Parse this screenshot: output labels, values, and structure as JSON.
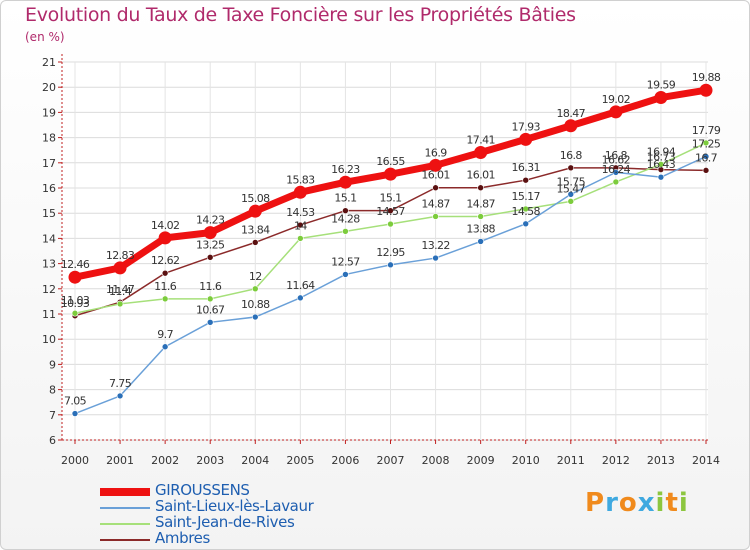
{
  "header": {
    "title": "Evolution du Taux de Taxe Foncière sur les Propriétés Bâties",
    "subtitle": "(en %)"
  },
  "logo": {
    "letters": [
      "P",
      "r",
      "o",
      "x",
      "i",
      "t",
      "i"
    ],
    "colors": [
      "#f08a1c",
      "#3fa9e0",
      "#f08a1c",
      "#3fa9e0",
      "#8cc63f",
      "#f08a1c",
      "#8cc63f"
    ]
  },
  "chart_data": {
    "type": "line",
    "title": "Evolution du Taux de Taxe Foncière sur les Propriétés Bâties",
    "ylabel": "(en %)",
    "xlabel": "",
    "ylim": [
      6,
      21
    ],
    "yticks": [
      "6",
      "7",
      "8",
      "9",
      "10",
      "11",
      "12",
      "13",
      "14",
      "15",
      "16",
      "17",
      "18",
      "19",
      "20",
      "21"
    ],
    "x": [
      "2000",
      "2001",
      "2002",
      "2003",
      "2004",
      "2005",
      "2006",
      "2007",
      "2008",
      "2009",
      "2010",
      "2011",
      "2012",
      "2013",
      "2014"
    ],
    "legend_position": "bottom-left",
    "series": [
      {
        "name": "Ambres",
        "color": "#8b2a2a",
        "marker": "#5a1010",
        "values": [
          10.93,
          11.47,
          12.62,
          13.25,
          13.84,
          14.53,
          15.1,
          15.1,
          16.01,
          16.01,
          16.31,
          16.8,
          16.8,
          16.73,
          16.7
        ],
        "labels": [
          "10.93",
          "11.47",
          "12.62",
          "13.25",
          "13.84",
          "14.53",
          "15.1",
          "15.1",
          "16.01",
          "16.01",
          "16.31",
          "16.8",
          "16.8",
          "16.73",
          "16.7"
        ]
      },
      {
        "name": "Saint-Jean-de-Rives",
        "color": "#a6e07a",
        "marker": "#7ccc3c",
        "values": [
          11.03,
          11.4,
          11.6,
          11.6,
          12.0,
          14.0,
          14.28,
          14.57,
          14.87,
          14.87,
          15.17,
          15.47,
          16.24,
          16.94,
          17.79
        ],
        "labels": [
          "11.03",
          "11.4",
          "11.6",
          "11.6",
          "12",
          "14",
          "14.28",
          "14.57",
          "14.87",
          "14.87",
          "15.17",
          "15.47",
          "16.24",
          "16.94",
          "17.79"
        ]
      },
      {
        "name": "Saint-Lieux-lès-Lavaur",
        "color": "#6aa0d8",
        "marker": "#2a6fb8",
        "values": [
          7.05,
          7.75,
          9.7,
          10.67,
          10.88,
          11.64,
          12.57,
          12.95,
          13.22,
          13.88,
          14.58,
          15.75,
          16.62,
          16.43,
          17.25
        ],
        "labels": [
          "7.05",
          "7.75",
          "9.7",
          "10.67",
          "10.88",
          "11.64",
          "12.57",
          "12.95",
          "13.22",
          "13.88",
          "14.58",
          "15.75",
          "16.62",
          "16.43",
          "17.25"
        ]
      },
      {
        "name": "GIROUSSENS",
        "color": "#ee1111",
        "marker": "#ee1111",
        "values": [
          12.46,
          12.83,
          14.02,
          14.23,
          15.08,
          15.83,
          16.23,
          16.55,
          16.9,
          17.41,
          17.93,
          18.47,
          19.02,
          19.59,
          19.88
        ],
        "labels": [
          "12.46",
          "12.83",
          "14.02",
          "14.23",
          "15.08",
          "15.83",
          "16.23",
          "16.55",
          "16.9",
          "17.41",
          "17.93",
          "18.47",
          "19.02",
          "19.59",
          "19.88"
        ]
      }
    ],
    "legend": [
      {
        "name": "GIROUSSENS",
        "color": "#ee1111"
      },
      {
        "name": "Saint-Lieux-lès-Lavaur",
        "color": "#6aa0d8"
      },
      {
        "name": "Saint-Jean-de-Rives",
        "color": "#a6e07a"
      },
      {
        "name": "Ambres",
        "color": "#8b2a2a"
      }
    ]
  }
}
